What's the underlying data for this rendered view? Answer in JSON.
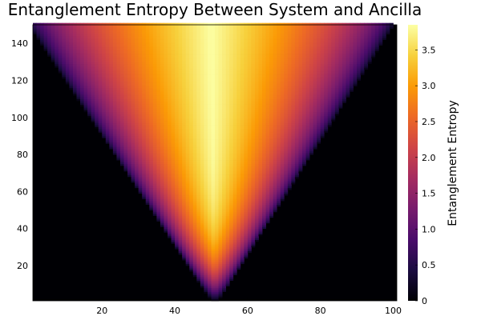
{
  "chart_data": {
    "type": "heatmap",
    "title": "Entanglement Entropy Between System and Ancilla",
    "xlabel": "",
    "ylabel": "",
    "xlim": [
      1,
      101
    ],
    "ylim": [
      1,
      150
    ],
    "x_ticks": [
      20,
      40,
      60,
      80,
      100
    ],
    "y_ticks": [
      20,
      40,
      60,
      80,
      100,
      120,
      140
    ],
    "x_tick_labels": [
      "20",
      "40",
      "60",
      "80",
      "100"
    ],
    "y_tick_labels": [
      "20",
      "40",
      "60",
      "80",
      "100",
      "120",
      "140"
    ],
    "grid": false,
    "colormap": "inferno",
    "colorbar": {
      "label": "Entanglement Entropy",
      "range": [
        0,
        3.85
      ],
      "ticks": [
        0,
        0.5,
        1.0,
        1.5,
        2.0,
        2.5,
        3.0,
        3.5
      ],
      "tick_labels": [
        "0",
        "0.5",
        "1.0",
        "1.5",
        "2.0",
        "2.5",
        "3.0",
        "3.5"
      ]
    },
    "light_cone": {
      "center_x": 51,
      "start_y": 1,
      "spread_per_step": 0.33,
      "max_entropy": 3.85,
      "peak_x_at_top": 50
    },
    "series": [
      {
        "t": 1,
        "site": 51,
        "value": 0.3
      },
      {
        "t": 20,
        "site": 51,
        "value": 2.8
      },
      {
        "t": 60,
        "site": 51,
        "value": 3.7
      },
      {
        "t": 150,
        "site": 51,
        "value": 3.85
      },
      {
        "t": 150,
        "site": 20,
        "value": 1.5
      },
      {
        "t": 150,
        "site": 10,
        "value": 0.3
      }
    ],
    "colors": {
      "stop0": "#000004",
      "stop1": "#1b0c41",
      "stop2": "#4a0c6b",
      "stop3": "#781c6d",
      "stop4": "#a52c60",
      "stop5": "#cf4446",
      "stop6": "#ed6925",
      "stop7": "#fb9b06",
      "stop8": "#f7d13d",
      "stop9": "#fcffa4"
    }
  }
}
